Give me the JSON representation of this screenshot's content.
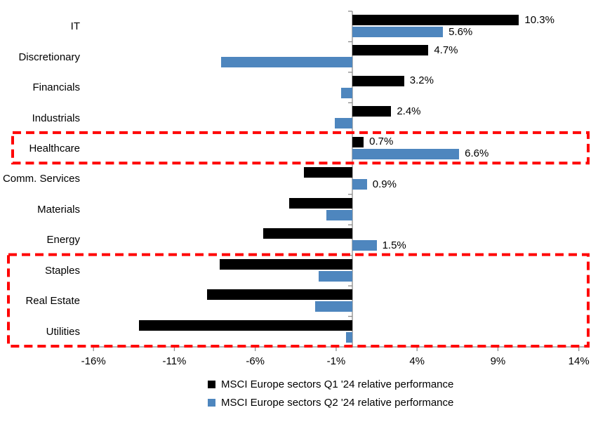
{
  "chart_data": {
    "type": "bar",
    "orientation": "horizontal",
    "title": "",
    "categories": [
      "IT",
      "Discretionary",
      "Financials",
      "Industrials",
      "Healthcare",
      "Comm. Services",
      "Materials",
      "Energy",
      "Staples",
      "Real Estate",
      "Utilities"
    ],
    "series": [
      {
        "name": "MSCI Europe sectors Q1 '24 relative performance",
        "color": "#000000",
        "values": [
          10.3,
          4.7,
          3.2,
          2.4,
          0.7,
          -3.0,
          -3.9,
          -5.5,
          -8.2,
          -9.0,
          -13.2
        ]
      },
      {
        "name": "MSCI Europe sectors Q2 '24 relative performance",
        "color": "#4E86BE",
        "values": [
          5.6,
          -8.1,
          -0.7,
          -1.1,
          6.6,
          0.9,
          -1.6,
          1.5,
          -2.1,
          -2.3,
          -0.4
        ]
      }
    ],
    "value_labels": [
      [
        "10.3%",
        "4.7%",
        "3.2%",
        "2.4%",
        "0.7%",
        "-3.0%",
        "-3.9%",
        "-5.5%",
        "-8.2%",
        "-9.0%",
        "-13.2%"
      ],
      [
        "5.6%",
        "-8.1%",
        "-0.7%",
        "-1.1%",
        "6.6%",
        "0.9%",
        "-1.6%",
        "1.5%",
        "-2.1%",
        "-2.3%",
        "-0.4%"
      ]
    ],
    "x_axis": {
      "tick_labels": [
        "-16%",
        "-11%",
        "-6%",
        "-1%",
        "4%",
        "9%",
        "14%"
      ],
      "tick_values": [
        -16,
        -11,
        -6,
        -1,
        4,
        9,
        14
      ],
      "min": -16,
      "max": 14,
      "grid": false
    },
    "axis_color": "#8C8C8C",
    "legend_position": "bottom",
    "highlights": [
      {
        "categories": [
          "Healthcare"
        ],
        "color": "#FF0000",
        "style": "dashed"
      },
      {
        "categories": [
          "Staples",
          "Real Estate",
          "Utilities"
        ],
        "color": "#FF0000",
        "style": "dashed"
      }
    ]
  }
}
